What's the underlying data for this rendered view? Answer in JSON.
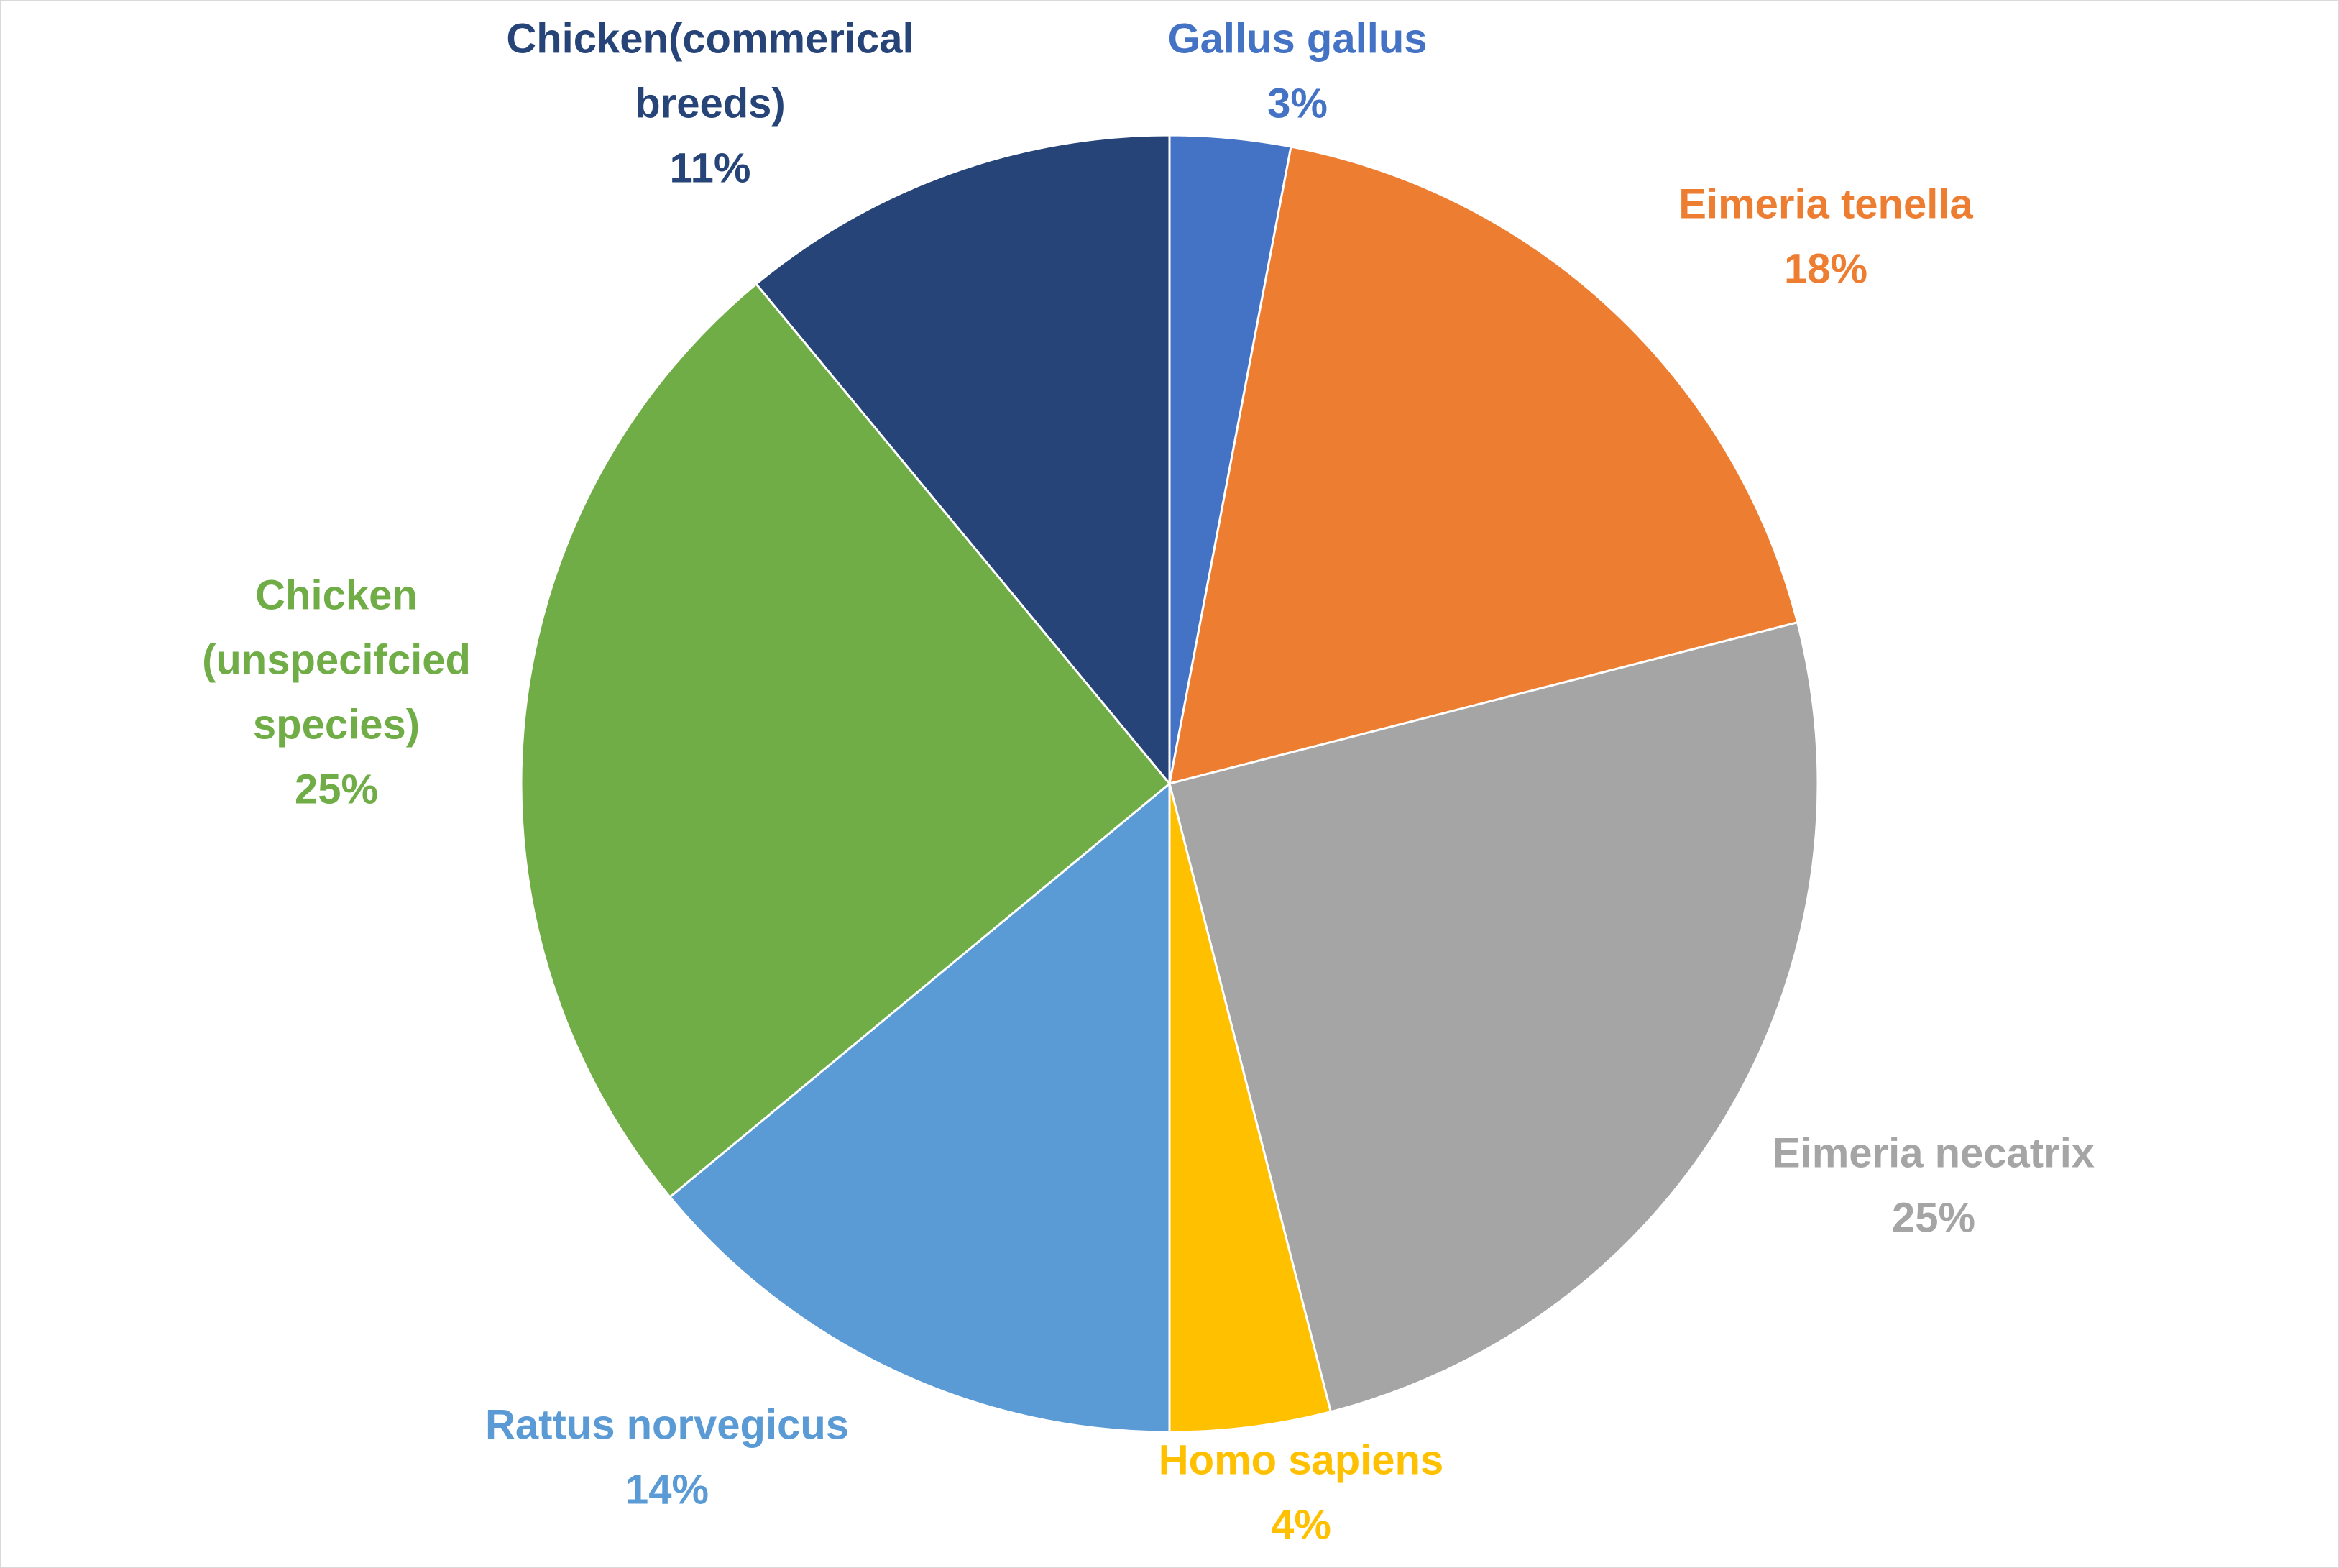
{
  "chart_data": {
    "type": "pie",
    "title": "",
    "slices": [
      {
        "label": "Gallus gallus",
        "label_lines": [
          "Gallus gallus"
        ],
        "value": 3,
        "percent_label": "3%",
        "color": "#4472c4"
      },
      {
        "label": "Eimeria tenella",
        "label_lines": [
          "Eimeria tenella"
        ],
        "value": 18,
        "percent_label": "18%",
        "color": "#ed7d31"
      },
      {
        "label": "Eimeria necatrix",
        "label_lines": [
          "Eimeria necatrix"
        ],
        "value": 25,
        "percent_label": "25%",
        "color": "#a5a5a5"
      },
      {
        "label": "Homo sapiens",
        "label_lines": [
          "Homo sapiens"
        ],
        "value": 4,
        "percent_label": "4%",
        "color": "#ffc000"
      },
      {
        "label": "Rattus norvegicus",
        "label_lines": [
          "Rattus norvegicus"
        ],
        "value": 14,
        "percent_label": "14%",
        "color": "#5b9bd5"
      },
      {
        "label": "Chicken (unspecifcied species)",
        "label_lines": [
          "Chicken",
          "(unspecifcied",
          "species)"
        ],
        "value": 25,
        "percent_label": "25%",
        "color": "#70ad47"
      },
      {
        "label": "Chicken(commerical breeds)",
        "label_lines": [
          "Chicken(commerical",
          "breeds)"
        ],
        "value": 11,
        "percent_label": "11%",
        "color": "#264478"
      }
    ],
    "start_angle": "12 o'clock",
    "direction": "clockwise",
    "data_labels": "outside, category name and percentage",
    "legend": "none"
  }
}
